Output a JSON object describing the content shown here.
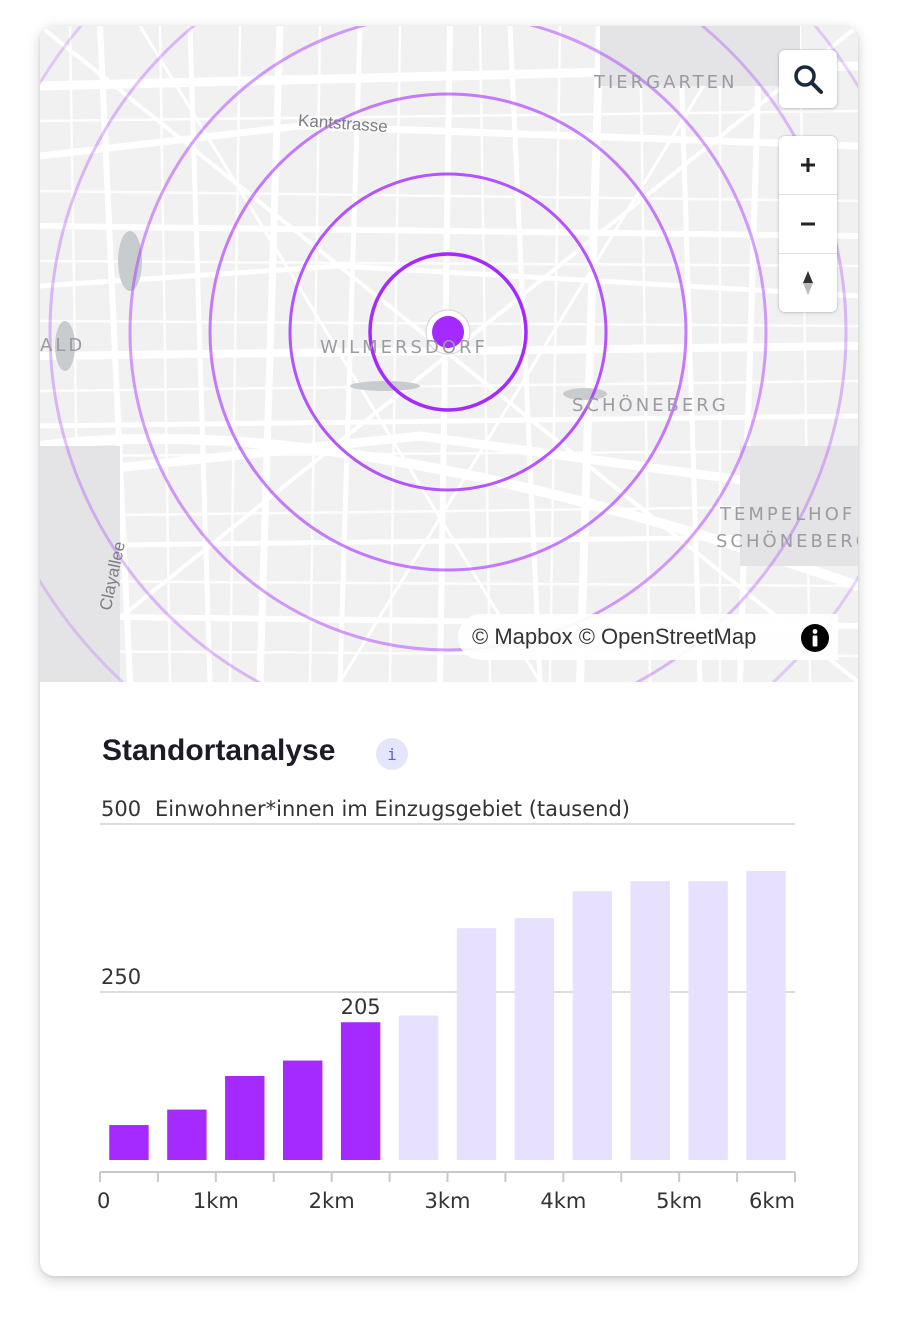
{
  "map": {
    "district_labels": [
      "TIERGARTEN",
      "WILMERSDORF",
      "SCHÖNEBERG",
      "TEMPELHOF",
      "SCHÖNEBERG",
      "ALD"
    ],
    "street_labels": [
      "Kantstrasse",
      "Clayallee"
    ],
    "attribution": "© Mapbox © OpenStreetMap",
    "controls": {
      "search": "search-icon",
      "zoom_in": "+",
      "zoom_out": "−",
      "compass": "compass-icon",
      "info": "info-icon"
    },
    "colors": {
      "marker": "#a52aff",
      "ring": "#a52aff",
      "map_bg": "#f1f1f2"
    }
  },
  "panel": {
    "title": "Standortanalyse",
    "info_icon": "i"
  },
  "chart_data": {
    "type": "bar",
    "ylabel": "Einwohner*innen im Einzugsgebiet (tausend)",
    "y_ticks": [
      250,
      500
    ],
    "ylim": [
      0,
      500
    ],
    "x_ticks": [
      "0",
      "1km",
      "2km",
      "3km",
      "4km",
      "5km",
      "6km"
    ],
    "xlim": [
      0,
      6
    ],
    "bar_width_km": 0.5,
    "selected_label": "205",
    "colors": {
      "selected": "#a52aff",
      "unselected": "#e8e0ff"
    },
    "bars": [
      {
        "x": 0.5,
        "value": 52,
        "selected": true
      },
      {
        "x": 1.0,
        "value": 75,
        "selected": true
      },
      {
        "x": 1.5,
        "value": 125,
        "selected": true
      },
      {
        "x": 2.0,
        "value": 148,
        "selected": true
      },
      {
        "x": 2.5,
        "value": 205,
        "selected": true
      },
      {
        "x": 3.0,
        "value": 215,
        "selected": false
      },
      {
        "x": 3.5,
        "value": 345,
        "selected": false
      },
      {
        "x": 4.0,
        "value": 360,
        "selected": false
      },
      {
        "x": 4.5,
        "value": 400,
        "selected": false
      },
      {
        "x": 5.0,
        "value": 415,
        "selected": false
      },
      {
        "x": 5.5,
        "value": 415,
        "selected": false
      },
      {
        "x": 6.0,
        "value": 430,
        "selected": false
      }
    ]
  }
}
